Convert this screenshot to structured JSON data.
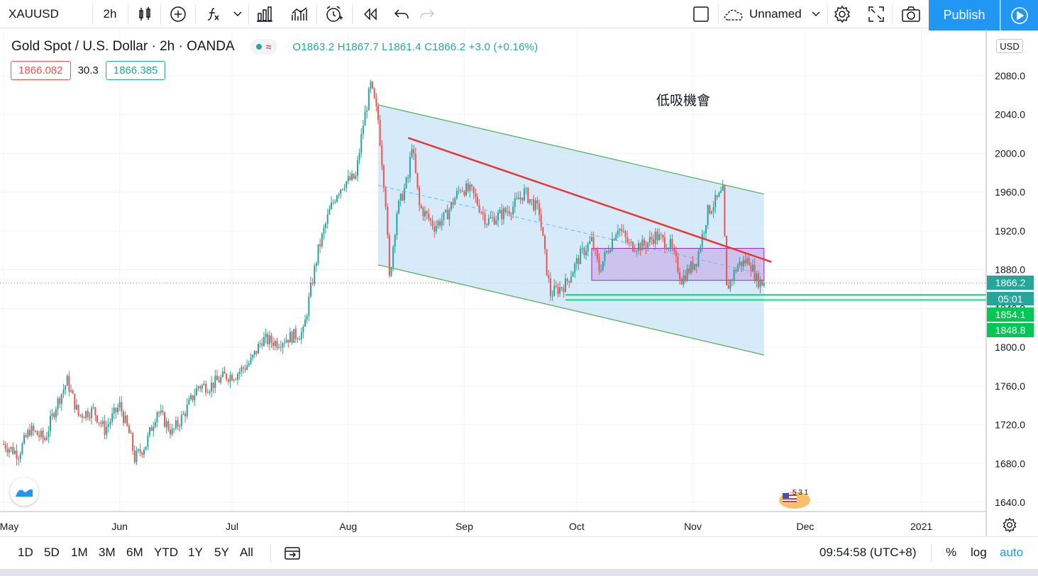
{
  "toolbar": {
    "symbol": "XAUUSD",
    "interval": "2h",
    "layout_name": "Unnamed",
    "publish_label": "Publish"
  },
  "legend": {
    "title": "Gold Spot / U.S. Dollar · 2h · OANDA",
    "wave": "≈",
    "ohlc": "O1863.2  H1867.7  L1861.4  C1866.2  +3.0 (+0.16%)",
    "bid": "1866.082",
    "spread": "30.3",
    "ask": "1866.385"
  },
  "annotation": "低吸機會",
  "price_scale": {
    "currency": "USD",
    "last_price": "1866.2",
    "countdown": "05:01",
    "level_1": "1854.1",
    "level_2": "1848.8"
  },
  "bottom": {
    "ranges": [
      "1D",
      "5D",
      "1M",
      "3M",
      "6M",
      "YTD",
      "1Y",
      "5Y",
      "All"
    ],
    "clock": "09:54:58 (UTC+8)",
    "percent_label": "%",
    "log_label": "log",
    "auto_label": "auto"
  },
  "badge_text": "5 3 1",
  "colors": {
    "up": "#26a69a",
    "down": "#ef5350",
    "accent": "#2196f3",
    "channel_fill": "#c9e3f7",
    "channel_line": "#4caf50",
    "trendline": "#e53935",
    "consolidation_box": "#c7b6ea",
    "support_line": "#00e676"
  },
  "chart_data": {
    "type": "candlestick",
    "symbol": "XAUUSD",
    "interval": "2h",
    "x_ticks": [
      "May",
      "Jun",
      "Jul",
      "Aug",
      "Sep",
      "Oct",
      "Nov",
      "Dec",
      "2021"
    ],
    "y_ticks": [
      1640.0,
      1680.0,
      1720.0,
      1760.0,
      1800.0,
      1840.0,
      1880.0,
      1920.0,
      1960.0,
      2000.0,
      2040.0,
      2080.0
    ],
    "ylim": [
      1628,
      2125
    ],
    "path": [
      [
        "2020-05-01",
        1700
      ],
      [
        "2020-05-05",
        1690
      ],
      [
        "2020-05-08",
        1715
      ],
      [
        "2020-05-12",
        1705
      ],
      [
        "2020-05-15",
        1740
      ],
      [
        "2020-05-18",
        1765
      ],
      [
        "2020-05-21",
        1730
      ],
      [
        "2020-05-25",
        1735
      ],
      [
        "2020-05-28",
        1715
      ],
      [
        "2020-06-01",
        1740
      ],
      [
        "2020-06-04",
        1705
      ],
      [
        "2020-06-05",
        1685
      ],
      [
        "2020-06-08",
        1700
      ],
      [
        "2020-06-11",
        1735
      ],
      [
        "2020-06-15",
        1712
      ],
      [
        "2020-06-18",
        1730
      ],
      [
        "2020-06-22",
        1760
      ],
      [
        "2020-06-25",
        1760
      ],
      [
        "2020-06-29",
        1770
      ],
      [
        "2020-07-02",
        1772
      ],
      [
        "2020-07-06",
        1785
      ],
      [
        "2020-07-09",
        1808
      ],
      [
        "2020-07-13",
        1805
      ],
      [
        "2020-07-16",
        1810
      ],
      [
        "2020-07-20",
        1815
      ],
      [
        "2020-07-22",
        1860
      ],
      [
        "2020-07-24",
        1900
      ],
      [
        "2020-07-27",
        1940
      ],
      [
        "2020-07-29",
        1960
      ],
      [
        "2020-07-31",
        1970
      ],
      [
        "2020-08-03",
        1975
      ],
      [
        "2020-08-05",
        2030
      ],
      [
        "2020-08-07",
        2070
      ],
      [
        "2020-08-09",
        2035
      ],
      [
        "2020-08-11",
        1950
      ],
      [
        "2020-08-12",
        1870
      ],
      [
        "2020-08-14",
        1940
      ],
      [
        "2020-08-17",
        1975
      ],
      [
        "2020-08-18",
        2010
      ],
      [
        "2020-08-20",
        1945
      ],
      [
        "2020-08-24",
        1925
      ],
      [
        "2020-08-27",
        1935
      ],
      [
        "2020-08-31",
        1965
      ],
      [
        "2020-09-03",
        1960
      ],
      [
        "2020-09-07",
        1930
      ],
      [
        "2020-09-10",
        1935
      ],
      [
        "2020-09-14",
        1945
      ],
      [
        "2020-09-17",
        1960
      ],
      [
        "2020-09-21",
        1940
      ],
      [
        "2020-09-23",
        1880
      ],
      [
        "2020-09-24",
        1855
      ],
      [
        "2020-09-28",
        1865
      ],
      [
        "2020-10-02",
        1895
      ],
      [
        "2020-10-05",
        1910
      ],
      [
        "2020-10-07",
        1880
      ],
      [
        "2020-10-12",
        1925
      ],
      [
        "2020-10-15",
        1905
      ],
      [
        "2020-10-19",
        1905
      ],
      [
        "2020-10-22",
        1915
      ],
      [
        "2020-10-26",
        1905
      ],
      [
        "2020-10-29",
        1870
      ],
      [
        "2020-11-02",
        1890
      ],
      [
        "2020-11-05",
        1940
      ],
      [
        "2020-11-09",
        1960
      ],
      [
        "2020-11-10",
        1860
      ],
      [
        "2020-11-13",
        1885
      ],
      [
        "2020-11-16",
        1890
      ],
      [
        "2020-11-18",
        1870
      ],
      [
        "2020-11-20",
        1865
      ]
    ],
    "last": {
      "open": 1863.2,
      "high": 1867.7,
      "low": 1861.4,
      "close": 1866.2,
      "change": 3.0,
      "change_pct": 0.16
    },
    "drawings": {
      "channel_upper": [
        [
          "2020-08-09",
          2050
        ],
        [
          "2020-11-20",
          1958
        ]
      ],
      "channel_lower": [
        [
          "2020-08-09",
          1885
        ],
        [
          "2020-11-20",
          1792
        ]
      ],
      "channel_midline": [
        [
          "2020-08-09",
          1967
        ],
        [
          "2020-11-20",
          1875
        ]
      ],
      "resistance_trendline": [
        [
          "2020-08-17",
          2016
        ],
        [
          "2020-11-22",
          1888
        ]
      ],
      "consolidation_box": {
        "from": "2020-10-05",
        "to": "2020-11-20",
        "top": 1902,
        "bottom": 1869
      },
      "support_lines": [
        1854.1,
        1848.8
      ]
    }
  }
}
